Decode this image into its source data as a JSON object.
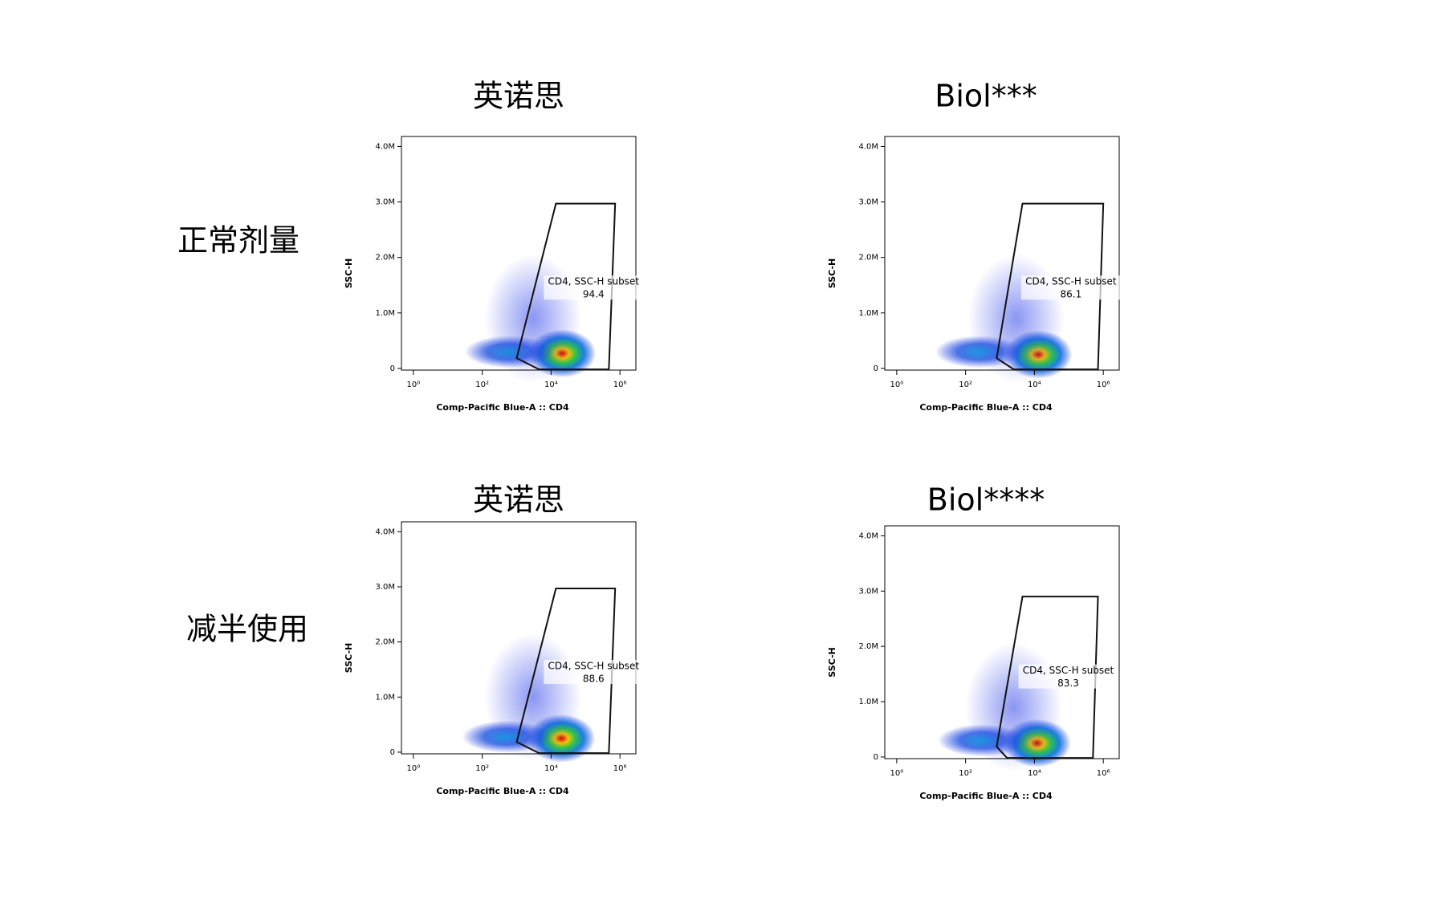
{
  "row_labels": [
    "正常剂量",
    "减半使用"
  ],
  "chart_data": [
    {
      "type": "flow",
      "title": "英诺思",
      "xlabel": "Comp-Pacific Blue-A :: CD4",
      "ylabel": "SSC-H",
      "xlog": true,
      "xlim": [
        0.45,
        2900000
      ],
      "ylim": [
        -30000,
        4180000
      ],
      "xticks": [
        {
          "value": 1,
          "label": "10⁰"
        },
        {
          "value": 100,
          "label": "10²"
        },
        {
          "value": 10000,
          "label": "10⁴"
        },
        {
          "value": 1000000,
          "label": "10⁶"
        }
      ],
      "yticks": [
        0,
        {
          "value": 1000000,
          "label": "1.0M"
        },
        {
          "value": 2000000,
          "label": "2.0M"
        },
        {
          "value": 3000000,
          "label": "3.0M"
        },
        {
          "value": 4000000,
          "label": "4.0M"
        }
      ],
      "gate": {
        "name": "CD4, SSC-H subset",
        "value": 94.4,
        "x": [
          13800,
          725000,
          476000,
          4470,
          1000
        ],
        "y": [
          2970000,
          2970000,
          -17000,
          -17000,
          185000
        ]
      },
      "clusters": {
        "x": [
          21000,
          600,
          3000
        ],
        "y": [
          270000,
          300000,
          900000
        ]
      }
    },
    {
      "type": "flow",
      "title": "Biol***",
      "xlabel": "Comp-Pacific Blue-A :: CD4",
      "ylabel": "SSC-H",
      "xlog": true,
      "xlim": [
        0.45,
        2900000
      ],
      "ylim": [
        -30000,
        4180000
      ],
      "xticks": [
        {
          "value": 1,
          "label": "10⁰"
        },
        {
          "value": 100,
          "label": "10²"
        },
        {
          "value": 10000,
          "label": "10⁴"
        },
        {
          "value": 1000000,
          "label": "10⁶"
        }
      ],
      "yticks": [
        0,
        {
          "value": 1000000,
          "label": "1.0M"
        },
        {
          "value": 2000000,
          "label": "2.0M"
        },
        {
          "value": 3000000,
          "label": "3.0M"
        },
        {
          "value": 4000000,
          "label": "4.0M"
        }
      ],
      "gate": {
        "name": "CD4, SSC-H subset",
        "value": 86.1,
        "x": [
          4500,
          1000000,
          700000,
          2500,
          800
        ],
        "y": [
          2970000,
          2970000,
          -17000,
          -17000,
          185000
        ]
      },
      "clusters": {
        "x": [
          13000,
          250,
          3000
        ],
        "y": [
          250000,
          300000,
          900000
        ]
      }
    },
    {
      "type": "flow",
      "title": "英诺思",
      "xlabel": "Comp-Pacific Blue-A :: CD4",
      "ylabel": "SSC-H",
      "xlog": true,
      "xlim": [
        0.45,
        2900000
      ],
      "ylim": [
        -30000,
        4180000
      ],
      "xticks": [
        {
          "value": 1,
          "label": "10⁰"
        },
        {
          "value": 100,
          "label": "10²"
        },
        {
          "value": 10000,
          "label": "10⁴"
        },
        {
          "value": 1000000,
          "label": "10⁶"
        }
      ],
      "yticks": [
        0,
        {
          "value": 1000000,
          "label": "1.0M"
        },
        {
          "value": 2000000,
          "label": "2.0M"
        },
        {
          "value": 3000000,
          "label": "3.0M"
        },
        {
          "value": 4000000,
          "label": "4.0M"
        }
      ],
      "gate": {
        "name": "CD4, SSC-H subset",
        "value": 88.6,
        "x": [
          13800,
          725000,
          476000,
          4470,
          1000
        ],
        "y": [
          2970000,
          2970000,
          -17000,
          -17000,
          185000
        ]
      },
      "clusters": {
        "x": [
          20000,
          500,
          3000
        ],
        "y": [
          250000,
          280000,
          1000000
        ]
      }
    },
    {
      "type": "flow",
      "title": "Biol****",
      "xlabel": "Comp-Pacific Blue-A :: CD4",
      "ylabel": "SSC-H",
      "xlog": true,
      "xlim": [
        0.45,
        2900000
      ],
      "ylim": [
        -30000,
        4180000
      ],
      "xticks": [
        {
          "value": 1,
          "label": "10⁰"
        },
        {
          "value": 100,
          "label": "10²"
        },
        {
          "value": 10000,
          "label": "10⁴"
        },
        {
          "value": 1000000,
          "label": "10⁶"
        }
      ],
      "yticks": [
        0,
        {
          "value": 1000000,
          "label": "1.0M"
        },
        {
          "value": 2000000,
          "label": "2.0M"
        },
        {
          "value": 3000000,
          "label": "3.0M"
        },
        {
          "value": 4000000,
          "label": "4.0M"
        }
      ],
      "gate": {
        "name": "CD4, SSC-H subset",
        "value": 83.3,
        "x": [
          4500,
          700000,
          500000,
          1600,
          800
        ],
        "y": [
          2900000,
          2900000,
          -17000,
          -17000,
          185000
        ]
      },
      "clusters": {
        "x": [
          12000,
          300,
          2500
        ],
        "y": [
          250000,
          300000,
          900000
        ]
      }
    }
  ]
}
